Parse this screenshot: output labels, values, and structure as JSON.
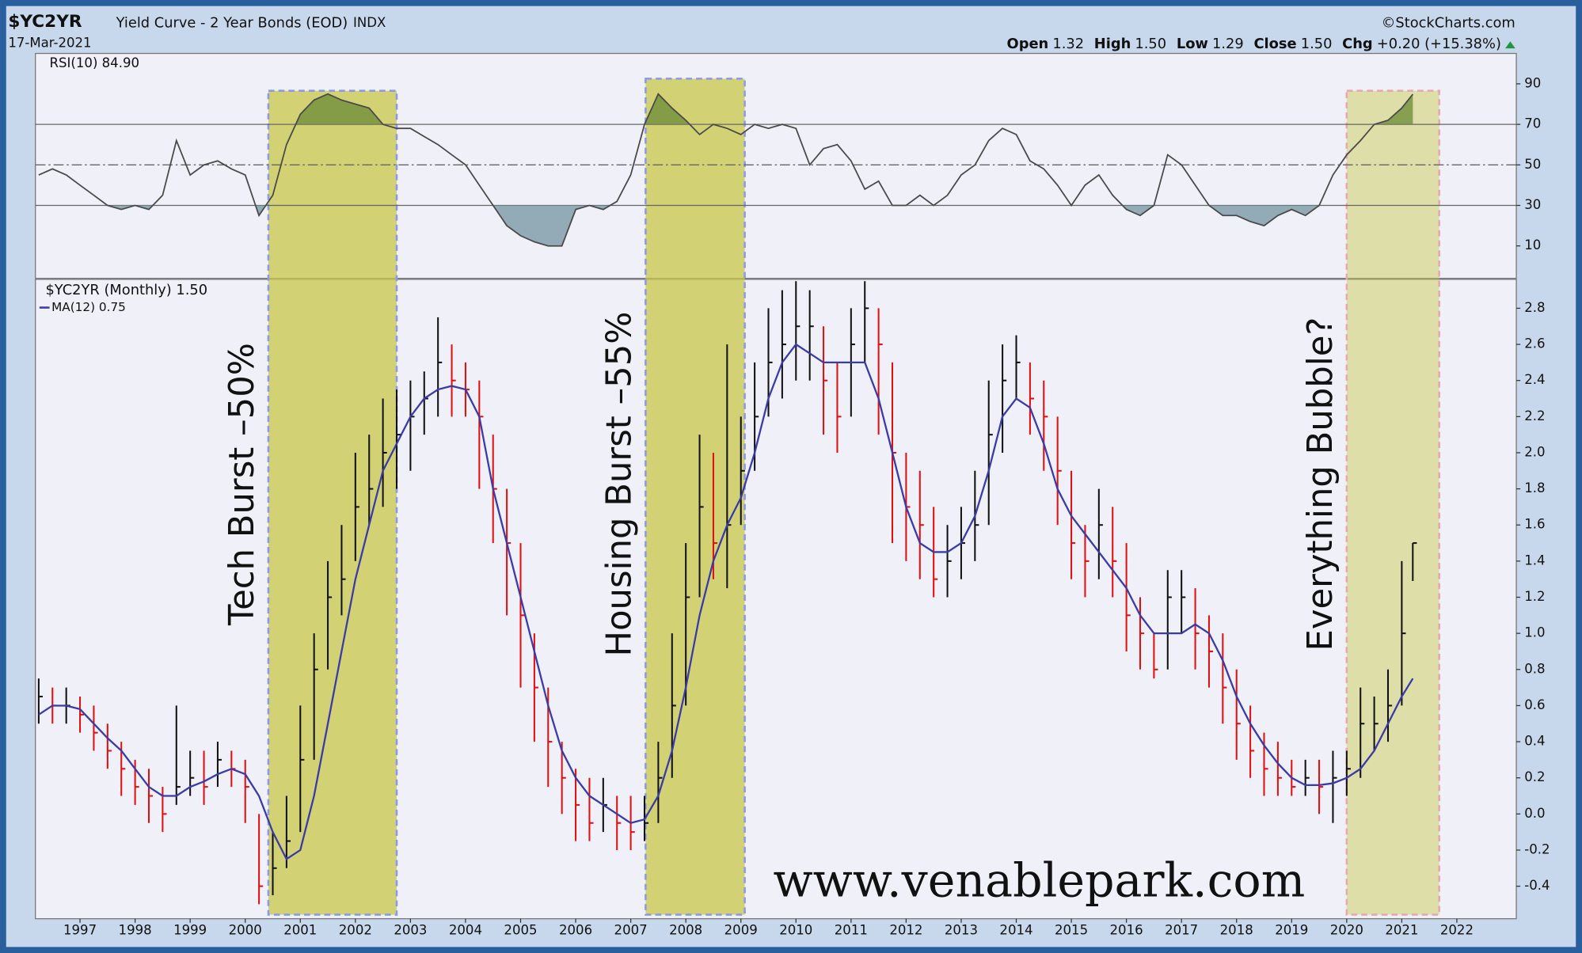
{
  "header": {
    "symbol": "$YC2YR",
    "name": "Yield Curve - 2 Year Bonds (EOD)",
    "exchange": "INDX",
    "date": "17-Mar-2021",
    "source": "©StockCharts.com",
    "quote": [
      {
        "label": "Open",
        "value": "1.32"
      },
      {
        "label": "High",
        "value": "1.50"
      },
      {
        "label": "Low",
        "value": "1.29"
      },
      {
        "label": "Close",
        "value": "1.50"
      },
      {
        "label": "Chg",
        "value": "+0.20 (+15.38%)"
      }
    ]
  },
  "chart_data": [
    {
      "type": "rsi",
      "legend": "RSI(10) 84.90",
      "color": "#4a4a4a",
      "fill_above_color": "#6f8f3a",
      "fill_below_color": "#7a9aa5",
      "levels": [
        {
          "value": 30,
          "style": "solid"
        },
        {
          "value": 50,
          "style": "dashdot"
        },
        {
          "value": 70,
          "style": "solid"
        }
      ],
      "xlim": [
        1996.19,
        2023.08
      ],
      "ylim": [
        -6,
        105
      ],
      "yticks": [
        10,
        30,
        50,
        70,
        90
      ],
      "x": [
        1996.25,
        1996.5,
        1996.75,
        1997,
        1997.25,
        1997.5,
        1997.75,
        1998,
        1998.25,
        1998.5,
        1998.75,
        1999,
        1999.25,
        1999.5,
        1999.75,
        2000,
        2000.25,
        2000.5,
        2000.75,
        2001,
        2001.25,
        2001.5,
        2001.75,
        2002,
        2002.25,
        2002.5,
        2002.75,
        2003,
        2003.25,
        2003.5,
        2003.75,
        2004,
        2004.25,
        2004.5,
        2004.75,
        2005,
        2005.25,
        2005.5,
        2005.75,
        2006,
        2006.25,
        2006.5,
        2006.75,
        2007,
        2007.25,
        2007.5,
        2007.75,
        2008,
        2008.25,
        2008.5,
        2008.75,
        2009,
        2009.25,
        2009.5,
        2009.75,
        2010,
        2010.25,
        2010.5,
        2010.75,
        2011,
        2011.25,
        2011.5,
        2011.75,
        2012,
        2012.25,
        2012.5,
        2012.75,
        2013,
        2013.25,
        2013.5,
        2013.75,
        2014,
        2014.25,
        2014.5,
        2014.75,
        2015,
        2015.25,
        2015.5,
        2015.75,
        2016,
        2016.25,
        2016.5,
        2016.75,
        2017,
        2017.25,
        2017.5,
        2017.75,
        2018,
        2018.25,
        2018.5,
        2018.75,
        2019,
        2019.25,
        2019.5,
        2019.75,
        2020,
        2020.25,
        2020.5,
        2020.75,
        2021,
        2021.2
      ],
      "values": [
        45,
        48,
        45,
        40,
        35,
        30,
        28,
        30,
        28,
        35,
        62,
        45,
        50,
        52,
        48,
        45,
        25,
        35,
        60,
        75,
        82,
        85,
        82,
        80,
        78,
        70,
        68,
        68,
        64,
        60,
        55,
        50,
        40,
        30,
        20,
        15,
        12,
        10,
        10,
        28,
        30,
        28,
        32,
        45,
        70,
        85,
        78,
        72,
        65,
        70,
        68,
        65,
        70,
        68,
        70,
        68,
        50,
        58,
        60,
        52,
        38,
        42,
        30,
        30,
        35,
        30,
        35,
        45,
        50,
        62,
        68,
        65,
        52,
        48,
        40,
        30,
        40,
        45,
        35,
        28,
        25,
        30,
        55,
        50,
        40,
        30,
        25,
        25,
        22,
        20,
        25,
        28,
        25,
        30,
        45,
        55,
        62,
        70,
        72,
        78,
        84.9
      ]
    },
    {
      "type": "ohlc",
      "legend": "$YC2YR (Monthly) 1.50",
      "up_color": "#111111",
      "down_color": "#e01010",
      "xlim": [
        1996.19,
        2023.08
      ],
      "xticks": [
        1997,
        1998,
        1999,
        2000,
        2001,
        2002,
        2003,
        2004,
        2005,
        2006,
        2007,
        2008,
        2009,
        2010,
        2011,
        2012,
        2013,
        2014,
        2015,
        2016,
        2017,
        2018,
        2019,
        2020,
        2021,
        2022
      ],
      "ylim": [
        -0.58,
        2.96
      ],
      "yticks": [
        -0.4,
        -0.2,
        {
          "value": 0,
          "label": "0.0"
        },
        0.2,
        0.4,
        0.6,
        0.8,
        {
          "value": 1,
          "label": "1.0"
        },
        1.2,
        1.4,
        1.6,
        1.8,
        {
          "value": 2,
          "label": "2.0"
        },
        2.2,
        2.4,
        2.6,
        2.8
      ],
      "x": [
        1996.25,
        1996.5,
        1996.75,
        1997,
        1997.25,
        1997.5,
        1997.75,
        1998,
        1998.25,
        1998.5,
        1998.75,
        1999,
        1999.25,
        1999.5,
        1999.75,
        2000,
        2000.25,
        2000.5,
        2000.75,
        2001,
        2001.25,
        2001.5,
        2001.75,
        2002,
        2002.25,
        2002.5,
        2002.75,
        2003,
        2003.25,
        2003.5,
        2003.75,
        2004,
        2004.25,
        2004.5,
        2004.75,
        2005,
        2005.25,
        2005.5,
        2005.75,
        2006,
        2006.25,
        2006.5,
        2006.75,
        2007,
        2007.25,
        2007.5,
        2007.75,
        2008,
        2008.25,
        2008.5,
        2008.75,
        2009,
        2009.25,
        2009.5,
        2009.75,
        2010,
        2010.25,
        2010.5,
        2010.75,
        2011,
        2011.25,
        2011.5,
        2011.75,
        2012,
        2012.25,
        2012.5,
        2012.75,
        2013,
        2013.25,
        2013.5,
        2013.75,
        2014,
        2014.25,
        2014.5,
        2014.75,
        2015,
        2015.25,
        2015.5,
        2015.75,
        2016,
        2016.25,
        2016.5,
        2016.75,
        2017,
        2017.25,
        2017.5,
        2017.75,
        2018,
        2018.25,
        2018.5,
        2018.75,
        2019,
        2019.25,
        2019.5,
        2019.75,
        2020,
        2020.25,
        2020.5,
        2020.75,
        2021,
        2021.2
      ],
      "high": [
        0.75,
        0.7,
        0.7,
        0.65,
        0.6,
        0.5,
        0.4,
        0.3,
        0.25,
        0.15,
        0.6,
        0.35,
        0.35,
        0.4,
        0.35,
        0.3,
        0.0,
        -0.1,
        0.1,
        0.6,
        1.0,
        1.4,
        1.6,
        2.0,
        2.1,
        2.3,
        2.35,
        2.4,
        2.45,
        2.75,
        2.6,
        2.5,
        2.4,
        2.1,
        1.8,
        1.5,
        1.0,
        0.7,
        0.4,
        0.25,
        0.2,
        0.2,
        0.1,
        0.1,
        0.1,
        0.4,
        1.0,
        1.5,
        2.1,
        2.0,
        2.6,
        2.2,
        2.5,
        2.8,
        2.9,
        2.95,
        2.9,
        2.7,
        2.5,
        2.8,
        2.95,
        2.8,
        2.5,
        2.0,
        1.9,
        1.7,
        1.6,
        1.7,
        1.9,
        2.4,
        2.6,
        2.65,
        2.5,
        2.4,
        2.2,
        1.9,
        1.6,
        1.8,
        1.7,
        1.5,
        1.2,
        1.0,
        1.35,
        1.35,
        1.25,
        1.1,
        1.0,
        0.8,
        0.6,
        0.45,
        0.4,
        0.3,
        0.3,
        0.3,
        0.35,
        0.35,
        0.7,
        0.65,
        0.8,
        1.4,
        1.5
      ],
      "low": [
        0.5,
        0.5,
        0.5,
        0.45,
        0.35,
        0.25,
        0.1,
        0.05,
        -0.05,
        -0.1,
        0.05,
        0.1,
        0.05,
        0.15,
        0.15,
        -0.05,
        -0.5,
        -0.45,
        -0.3,
        -0.1,
        0.3,
        0.8,
        1.1,
        1.4,
        1.6,
        1.7,
        1.8,
        1.9,
        2.1,
        2.2,
        2.2,
        2.2,
        1.8,
        1.5,
        1.1,
        0.7,
        0.4,
        0.15,
        0.0,
        -0.15,
        -0.15,
        -0.1,
        -0.2,
        -0.2,
        -0.15,
        -0.05,
        0.2,
        0.6,
        1.2,
        1.3,
        1.25,
        1.6,
        1.9,
        2.2,
        2.3,
        2.4,
        2.4,
        2.1,
        2.0,
        2.2,
        2.5,
        2.1,
        1.5,
        1.4,
        1.3,
        1.2,
        1.2,
        1.3,
        1.4,
        1.6,
        2.0,
        2.3,
        2.1,
        1.9,
        1.6,
        1.3,
        1.2,
        1.3,
        1.2,
        0.9,
        0.8,
        0.75,
        0.8,
        1.0,
        0.8,
        0.7,
        0.5,
        0.3,
        0.2,
        0.1,
        0.1,
        0.1,
        0.1,
        0.0,
        -0.05,
        0.1,
        0.2,
        0.35,
        0.4,
        0.6,
        1.29
      ],
      "close": [
        0.65,
        0.6,
        0.6,
        0.55,
        0.45,
        0.35,
        0.25,
        0.15,
        0.1,
        0.0,
        0.15,
        0.2,
        0.15,
        0.3,
        0.25,
        0.15,
        -0.4,
        -0.3,
        -0.15,
        0.3,
        0.8,
        1.2,
        1.3,
        1.7,
        1.8,
        2.0,
        2.1,
        2.2,
        2.3,
        2.5,
        2.4,
        2.35,
        2.2,
        1.8,
        1.5,
        1.1,
        0.7,
        0.4,
        0.2,
        0.05,
        -0.05,
        0.05,
        -0.05,
        -0.1,
        -0.05,
        0.2,
        0.6,
        1.2,
        1.7,
        1.5,
        1.6,
        1.9,
        2.2,
        2.5,
        2.6,
        2.7,
        2.7,
        2.4,
        2.2,
        2.6,
        2.8,
        2.6,
        2.0,
        1.7,
        1.6,
        1.3,
        1.4,
        1.5,
        1.6,
        2.1,
        2.4,
        2.5,
        2.3,
        2.2,
        1.9,
        1.5,
        1.4,
        1.6,
        1.4,
        1.1,
        1.0,
        0.8,
        1.2,
        1.2,
        1.0,
        0.9,
        0.7,
        0.5,
        0.35,
        0.25,
        0.2,
        0.15,
        0.2,
        0.15,
        0.2,
        0.25,
        0.5,
        0.5,
        0.6,
        1.0,
        1.5
      ],
      "series": [
        {
          "name": "MA(12) 0.75",
          "color": "#3a3aa8",
          "values": [
            0.55,
            0.6,
            0.6,
            0.58,
            0.5,
            0.42,
            0.35,
            0.25,
            0.15,
            0.1,
            0.1,
            0.15,
            0.18,
            0.22,
            0.25,
            0.22,
            0.1,
            -0.1,
            -0.25,
            -0.2,
            0.1,
            0.5,
            0.9,
            1.3,
            1.6,
            1.9,
            2.05,
            2.2,
            2.3,
            2.35,
            2.37,
            2.35,
            2.2,
            1.8,
            1.5,
            1.2,
            0.9,
            0.6,
            0.35,
            0.2,
            0.1,
            0.05,
            0.0,
            -0.05,
            -0.03,
            0.1,
            0.35,
            0.7,
            1.1,
            1.4,
            1.6,
            1.75,
            2.0,
            2.3,
            2.5,
            2.6,
            2.55,
            2.5,
            2.5,
            2.5,
            2.5,
            2.3,
            2.0,
            1.7,
            1.5,
            1.45,
            1.45,
            1.5,
            1.65,
            1.9,
            2.2,
            2.3,
            2.25,
            2.05,
            1.8,
            1.65,
            1.55,
            1.45,
            1.35,
            1.25,
            1.1,
            1.0,
            1.0,
            1.0,
            1.05,
            1.0,
            0.85,
            0.65,
            0.5,
            0.38,
            0.28,
            0.2,
            0.16,
            0.16,
            0.17,
            0.2,
            0.25,
            0.35,
            0.5,
            0.65,
            0.75
          ]
        }
      ],
      "annotations": [
        {
          "text": "Tech Burst –50%",
          "x0": 2000.42,
          "x1": 2002.75,
          "border": "#8a9ae8"
        },
        {
          "text": "Housing Burst –55%",
          "x0": 2007.27,
          "x1": 2009.07,
          "border": "#8a9ae8"
        },
        {
          "text": "Everything Bubble?",
          "x0": 2020.0,
          "x1": 2021.68,
          "border": "#e8a8b0"
        }
      ],
      "annotation_color": "#1f5a9c",
      "shade_color": "#c8c84a",
      "watermark": "www.venablepark.com"
    }
  ]
}
